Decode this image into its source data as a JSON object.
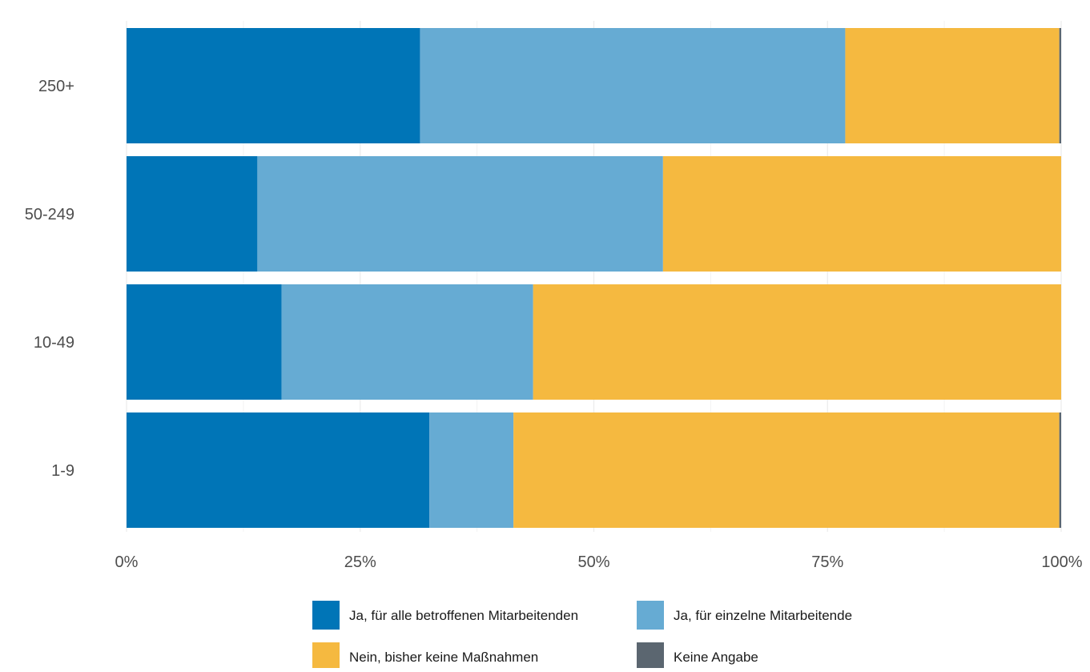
{
  "chart_data": {
    "type": "bar",
    "orientation": "horizontal",
    "stacked": true,
    "normalized": true,
    "categories": [
      "250+",
      "50-249",
      "10-49",
      "1-9"
    ],
    "series": [
      {
        "name": "Ja, für alle betroffenen Mitarbeitenden",
        "color": "#0075b7",
        "values": [
          31.4,
          14.0,
          16.6,
          32.4
        ]
      },
      {
        "name": "Ja, für einzelne Mitarbeitende",
        "color": "#66abd3",
        "values": [
          45.5,
          43.4,
          26.9,
          9.0
        ]
      },
      {
        "name": "Nein, bisher keine Maßnahmen",
        "color": "#f5b940",
        "values": [
          22.9,
          42.6,
          56.5,
          58.4
        ]
      },
      {
        "name": "Keine Angabe",
        "color": "#5b6670",
        "values": [
          0.2,
          0.0,
          0.0,
          0.2
        ]
      }
    ],
    "x_ticks": [
      "0%",
      "25%",
      "50%",
      "75%",
      "100%"
    ],
    "xlim": [
      0,
      100
    ],
    "xlabel": "",
    "ylabel": "",
    "title": "",
    "grid": true,
    "legend_position": "bottom"
  }
}
